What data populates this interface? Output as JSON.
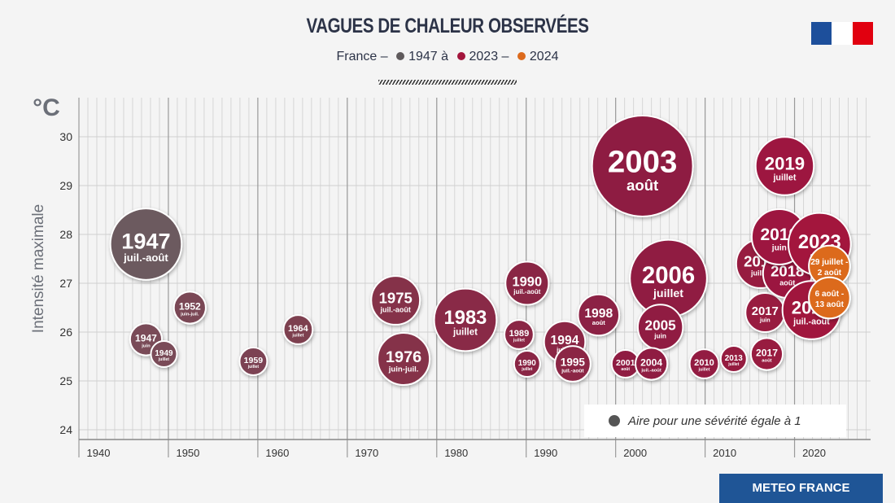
{
  "chart_data": {
    "type": "bubble",
    "title": "VAGUES DE CHALEUR OBSERVÉES",
    "subtitle": [
      {
        "text": "France –"
      },
      {
        "text": "1947 à",
        "color": "#5f5a5c"
      },
      {
        "text": "2023 –",
        "color": "#a3153c"
      },
      {
        "text": "2024",
        "color": "#dc6a1c"
      }
    ],
    "unit": "°C",
    "y_label": "Intensité maximale",
    "xlim": [
      1940,
      2028.5
    ],
    "ylim": [
      23.8,
      30.8
    ],
    "xticks": [
      1940,
      1950,
      1960,
      1970,
      1980,
      1990,
      2000,
      2010,
      2020
    ],
    "yticks": [
      24,
      25,
      26,
      27,
      28,
      29,
      30
    ],
    "grid": true,
    "minor_grid_step": 1,
    "legend_text": "Aire pour une sévérité égale à 1",
    "points": [
      {
        "x": 1947.5,
        "y": 27.8,
        "size": 30,
        "label": "1947",
        "sublabel": "juil.-août",
        "color": "#6c5a5e"
      },
      {
        "x": 1947.5,
        "y": 25.85,
        "size": 6,
        "label": "1947",
        "sublabel": "juin",
        "color": "#7a4b58"
      },
      {
        "x": 1949.5,
        "y": 25.55,
        "size": 4,
        "label": "1949",
        "sublabel": "juillet",
        "color": "#7a4b58"
      },
      {
        "x": 1952.4,
        "y": 26.5,
        "size": 6,
        "label": "1952",
        "sublabel": "juin-juil.",
        "color": "#7a4654"
      },
      {
        "x": 1959.5,
        "y": 25.4,
        "size": 4.5,
        "label": "1959",
        "sublabel": "juillet",
        "color": "#7c4252"
      },
      {
        "x": 1964.5,
        "y": 26.05,
        "size": 5,
        "label": "1964",
        "sublabel": "juillet",
        "color": "#7d3f50"
      },
      {
        "x": 1975.4,
        "y": 26.65,
        "size": 14,
        "label": "1975",
        "sublabel": "juil.-août",
        "color": "#85304a"
      },
      {
        "x": 1976.3,
        "y": 25.45,
        "size": 16,
        "label": "1976",
        "sublabel": "juin-juil.",
        "color": "#85304a"
      },
      {
        "x": 1983.2,
        "y": 26.25,
        "size": 23,
        "label": "1983",
        "sublabel": "juillet",
        "color": "#892a47"
      },
      {
        "x": 1989.2,
        "y": 25.95,
        "size": 5,
        "label": "1989",
        "sublabel": "juillet",
        "color": "#8a2745"
      },
      {
        "x": 1990.1,
        "y": 27.0,
        "size": 11,
        "label": "1990",
        "sublabel": "juil.-août",
        "color": "#8a2745"
      },
      {
        "x": 1990.1,
        "y": 25.35,
        "size": 4,
        "label": "1990",
        "sublabel": "juillet",
        "color": "#8a2745"
      },
      {
        "x": 1994.3,
        "y": 25.8,
        "size": 10,
        "label": "1994",
        "sublabel": "juillet",
        "color": "#8b2545"
      },
      {
        "x": 1995.2,
        "y": 25.35,
        "size": 7.5,
        "label": "1995",
        "sublabel": "juil.-août",
        "color": "#8b2545"
      },
      {
        "x": 1998.1,
        "y": 26.35,
        "size": 10,
        "label": "1998",
        "sublabel": "août",
        "color": "#8c2244"
      },
      {
        "x": 2003,
        "y": 29.4,
        "size": 60,
        "label": "2003",
        "sublabel": "août",
        "color": "#8e1f43"
      },
      {
        "x": 2005.9,
        "y": 27.1,
        "size": 35,
        "label": "2006",
        "sublabel": "juillet",
        "color": "#901e43"
      },
      {
        "x": 2005,
        "y": 26.1,
        "size": 12,
        "label": "2005",
        "sublabel": "juin",
        "color": "#901e43"
      },
      {
        "x": 2001.1,
        "y": 25.35,
        "size": 4.5,
        "label": "2001",
        "sublabel": "août",
        "color": "#8f1f43"
      },
      {
        "x": 2004,
        "y": 25.35,
        "size": 6,
        "label": "2004",
        "sublabel": "juil.-août",
        "color": "#8f1f43"
      },
      {
        "x": 2009.9,
        "y": 25.35,
        "size": 5,
        "label": "2010",
        "sublabel": "juillet",
        "color": "#931c42"
      },
      {
        "x": 2013.2,
        "y": 25.45,
        "size": 4,
        "label": "2013",
        "sublabel": "juillet",
        "color": "#951b41"
      },
      {
        "x": 2016.2,
        "y": 27.4,
        "size": 14,
        "label": "2015",
        "sublabel": "juillet",
        "color": "#971a41"
      },
      {
        "x": 2016.7,
        "y": 26.4,
        "size": 9,
        "label": "2017",
        "sublabel": "juin",
        "color": "#981a41"
      },
      {
        "x": 2016.9,
        "y": 25.55,
        "size": 6,
        "label": "2017",
        "sublabel": "août",
        "color": "#981a41"
      },
      {
        "x": 2019.2,
        "y": 27.2,
        "size": 14,
        "label": "2018",
        "sublabel": "août",
        "color": "#9b1840"
      },
      {
        "x": 2018.3,
        "y": 27.95,
        "size": 18,
        "label": "2019",
        "sublabel": "juin",
        "color": "#9d1740"
      },
      {
        "x": 2018.9,
        "y": 29.4,
        "size": 20,
        "label": "2019",
        "sublabel": "juillet",
        "color": "#9d1740"
      },
      {
        "x": 2021.9,
        "y": 26.45,
        "size": 20,
        "label": "2022",
        "sublabel": "juil.-août",
        "color": "#a0163e"
      },
      {
        "x": 2022.8,
        "y": 27.8,
        "size": 23,
        "label": "2023",
        "sublabel": "août",
        "color": "#a3153c"
      },
      {
        "x": 2023.9,
        "y": 27.35,
        "size": 10,
        "label": "29 juillet -",
        "sublabel": "2 août",
        "color": "#dc6a1c"
      },
      {
        "x": 2023.9,
        "y": 26.7,
        "size": 10,
        "label": "6 août -",
        "sublabel": "13 août",
        "color": "#dc6a1c"
      }
    ]
  },
  "footer": "METEO FRANCE"
}
